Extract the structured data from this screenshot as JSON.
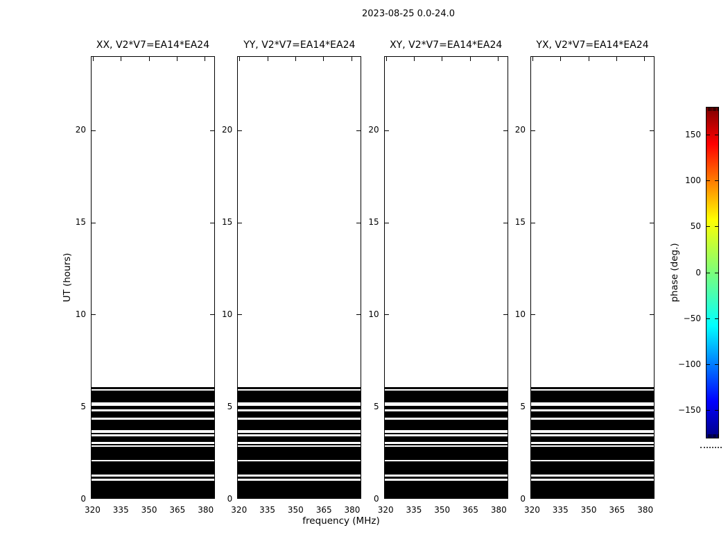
{
  "figure_title": "2023-08-25 0.0-24.0",
  "axes": {
    "xlabel": "frequency (MHz)",
    "ylabel": "UT (hours)",
    "x_tick_labels": [
      "320",
      "335",
      "350",
      "365",
      "380"
    ],
    "y_tick_labels": [
      "0",
      "5",
      "10",
      "15",
      "20"
    ]
  },
  "panels": [
    {
      "title": "XX, V2*V7=EA14*EA24"
    },
    {
      "title": "YY, V2*V7=EA14*EA24"
    },
    {
      "title": "XY, V2*V7=EA14*EA24"
    },
    {
      "title": "YX, V2*V7=EA14*EA24"
    }
  ],
  "colorbar": {
    "label": "phase (deg.)",
    "tick_labels": [
      "150",
      "100",
      "50",
      "0",
      "−50",
      "−100",
      "−150"
    ]
  },
  "chart_data": {
    "type": "heatmap",
    "title": "2023-08-25 0.0-24.0",
    "xlabel": "frequency (MHz)",
    "ylabel": "UT (hours)",
    "xlim": [
      319.1,
      384.9
    ],
    "ylim": [
      0,
      24
    ],
    "x_ticks": [
      320,
      335,
      350,
      365,
      380
    ],
    "y_ticks": [
      0,
      5,
      10,
      15,
      20
    ],
    "panel_titles": [
      "XX, V2*V7=EA14*EA24",
      "YY, V2*V7=EA14*EA24",
      "XY, V2*V7=EA14*EA24",
      "YX, V2*V7=EA14*EA24"
    ],
    "colorbar": {
      "label": "phase (deg.)",
      "min": -180,
      "max": 180,
      "ticks": [
        150,
        100,
        50,
        0,
        -50,
        -100,
        -150
      ],
      "colormap": "jet"
    },
    "data_bands_ut_hours": [
      [
        0.0,
        0.93
      ],
      [
        1.04,
        1.17
      ],
      [
        1.29,
        1.99
      ],
      [
        2.09,
        2.79
      ],
      [
        2.88,
        2.94
      ],
      [
        3.04,
        3.37
      ],
      [
        3.49,
        3.56
      ],
      [
        3.69,
        4.25
      ],
      [
        4.39,
        4.72
      ],
      [
        4.83,
        5.02
      ],
      [
        5.19,
        5.85
      ],
      [
        5.93,
        6.02
      ]
    ],
    "band_color": "#000000",
    "background_color": "#ffffff",
    "grid": false,
    "legend": false
  }
}
